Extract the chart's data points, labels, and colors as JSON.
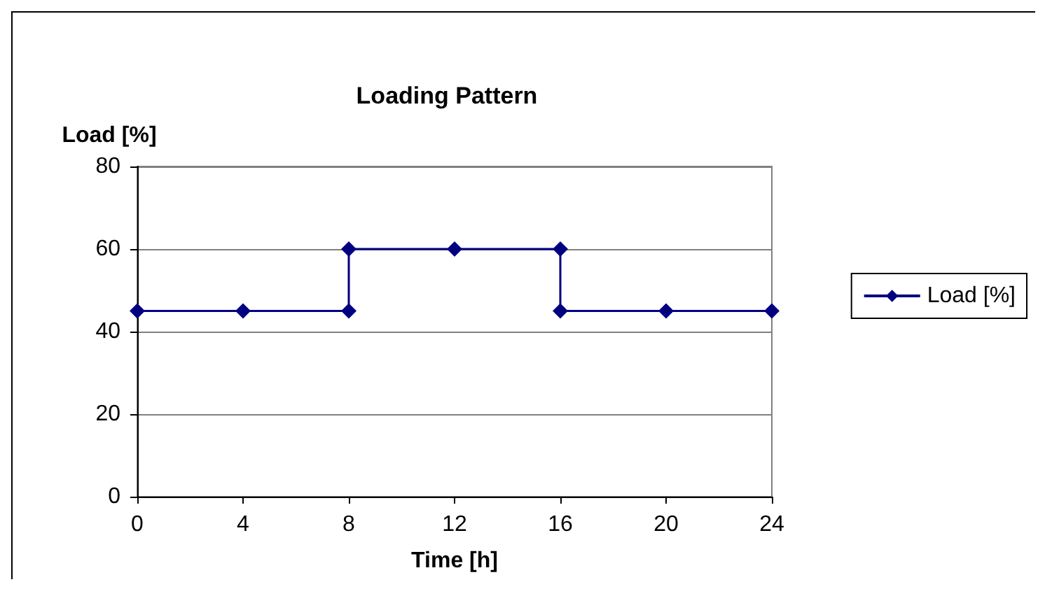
{
  "chart_data": {
    "type": "line",
    "title": "Loading Pattern",
    "xlabel": "Time [h]",
    "ylabel": "Load [%]",
    "x": [
      0,
      4,
      8,
      8,
      12,
      16,
      16,
      20,
      24
    ],
    "series": [
      {
        "name": "Load [%]",
        "color": "#000080",
        "values": [
          45,
          45,
          45,
          60,
          60,
          60,
          45,
          45,
          45
        ]
      }
    ],
    "xlim": [
      0,
      24
    ],
    "xticks": [
      0,
      4,
      8,
      12,
      16,
      20,
      24
    ],
    "ylim": [
      0,
      80
    ],
    "yticks": [
      0,
      20,
      40,
      60,
      80
    ],
    "grid": "y",
    "legend": "right",
    "marker": "diamond",
    "line_style": "solid"
  }
}
